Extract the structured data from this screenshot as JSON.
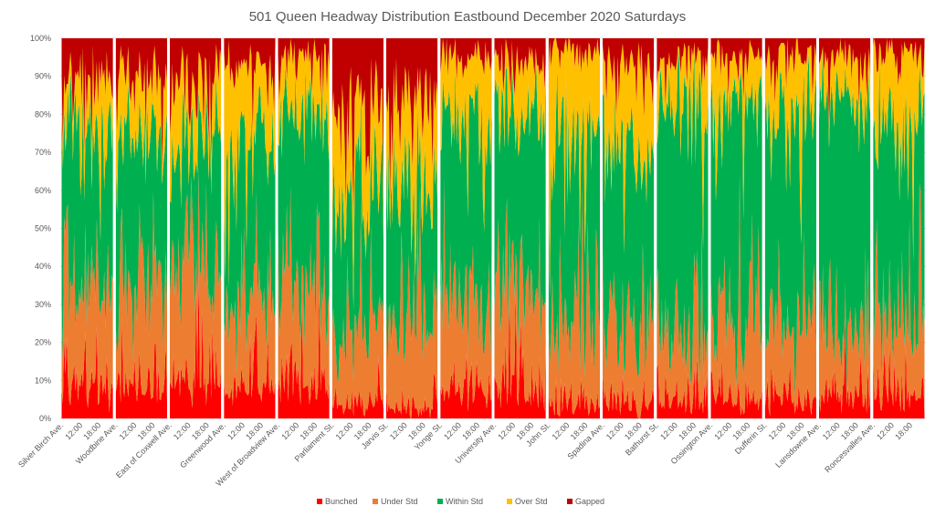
{
  "chart_data": {
    "type": "area",
    "stacked": "percent",
    "title": "501 Queen  Headway Distribution Eastbound December 2020 Saturdays",
    "xlabel": "",
    "ylabel": "",
    "ylim": [
      0,
      100
    ],
    "y_tick_labels": [
      "0%",
      "10%",
      "20%",
      "30%",
      "40%",
      "50%",
      "60%",
      "70%",
      "80%",
      "90%",
      "100%"
    ],
    "legend_position": "bottom",
    "gap_color": "#ffffff",
    "series": [
      {
        "name": "Bunched",
        "color": "#ff0000"
      },
      {
        "name": "Under Std",
        "color": "#ed7d31"
      },
      {
        "name": "Within Std",
        "color": "#00b050"
      },
      {
        "name": "Over Std",
        "color": "#ffc000"
      },
      {
        "name": "Gapped",
        "color": "#c00000"
      }
    ],
    "stops": [
      {
        "label": "Silver Birch Ave.",
        "times": [
          "12:00",
          "18:00"
        ],
        "bunched": 8,
        "under": 26,
        "within": 44,
        "over": 12,
        "gapped": 10
      },
      {
        "label": "Woodbine Ave.",
        "times": [
          "12:00",
          "18:00"
        ],
        "bunched": 8,
        "under": 26,
        "within": 39,
        "over": 17,
        "gapped": 10
      },
      {
        "label": "East of Coxwell Ave.",
        "times": [
          "12:00",
          "18:00"
        ],
        "bunched": 9,
        "under": 29,
        "within": 36,
        "over": 17,
        "gapped": 9
      },
      {
        "label": "Greenwood Ave.",
        "times": [
          "12:00",
          "18:00"
        ],
        "bunched": 8,
        "under": 24,
        "within": 42,
        "over": 19,
        "gapped": 7
      },
      {
        "label": "West of Broadview Ave.",
        "times": [
          "12:00",
          "18:00"
        ],
        "bunched": 10,
        "under": 26,
        "within": 45,
        "over": 13,
        "gapped": 6
      },
      {
        "label": "Parliament St.",
        "times": [
          "12:00",
          "18:00"
        ],
        "bunched": 4,
        "under": 22,
        "within": 37,
        "over": 22,
        "gapped": 15
      },
      {
        "label": "Jarvis St.",
        "times": [
          "12:00",
          "18:00"
        ],
        "bunched": 3,
        "under": 23,
        "within": 36,
        "over": 23,
        "gapped": 15
      },
      {
        "label": "Yonge St.",
        "times": [
          "12:00",
          "18:00"
        ],
        "bunched": 7,
        "under": 25,
        "within": 47,
        "over": 16,
        "gapped": 5
      },
      {
        "label": "University Ave.",
        "times": [
          "12:00",
          "18:00"
        ],
        "bunched": 8,
        "under": 25,
        "within": 49,
        "over": 13,
        "gapped": 5
      },
      {
        "label": "John St.",
        "times": [
          "12:00",
          "18:00"
        ],
        "bunched": 4,
        "under": 22,
        "within": 48,
        "over": 23,
        "gapped": 3
      },
      {
        "label": "Spadina Ave.",
        "times": [
          "12:00",
          "18:00"
        ],
        "bunched": 3,
        "under": 22,
        "within": 47,
        "over": 22,
        "gapped": 6
      },
      {
        "label": "Bathurst St.",
        "times": [
          "12:00",
          "18:00"
        ],
        "bunched": 4,
        "under": 18,
        "within": 62,
        "over": 11,
        "gapped": 5
      },
      {
        "label": "Ossington Ave.",
        "times": [
          "12:00",
          "18:00"
        ],
        "bunched": 5,
        "under": 20,
        "within": 59,
        "over": 11,
        "gapped": 5
      },
      {
        "label": "Dufferin St.",
        "times": [
          "12:00",
          "18:00"
        ],
        "bunched": 5,
        "under": 21,
        "within": 54,
        "over": 16,
        "gapped": 4
      },
      {
        "label": "Lansdowne Ave.",
        "times": [
          "12:00",
          "18:00"
        ],
        "bunched": 6,
        "under": 17,
        "within": 61,
        "over": 11,
        "gapped": 5
      },
      {
        "label": "Roncesvalles Ave.",
        "times": [
          "12:00",
          "18:00"
        ],
        "bunched": 6,
        "under": 20,
        "within": 52,
        "over": 18,
        "gapped": 4
      }
    ]
  }
}
